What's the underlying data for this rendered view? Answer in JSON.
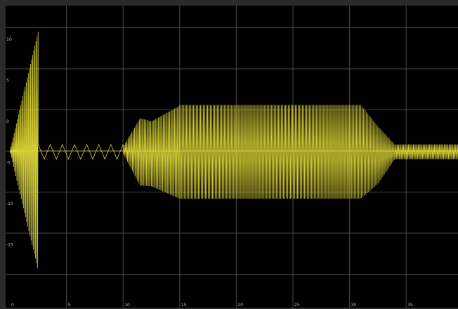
{
  "chart_data": {
    "type": "line",
    "title": "",
    "xlabel": "",
    "ylabel": "",
    "xlim": [
      0,
      40
    ],
    "ylim": [
      -17,
      17
    ],
    "grid": true,
    "xticks": [
      0,
      5,
      10,
      15,
      20,
      25,
      30,
      35
    ],
    "xtick_labels": [
      "0",
      "5",
      "10",
      "15",
      "20",
      "25",
      "30",
      "35"
    ],
    "yticks": [
      15,
      10,
      5,
      0,
      -5,
      -10,
      -15
    ],
    "ytick_labels": [
      "15",
      "10",
      "5",
      "0",
      "-5",
      "-10",
      "-15"
    ],
    "series": [
      {
        "color": "#e8e03a",
        "segments": [
          {
            "label_phase": "initial oscillation",
            "x_start": 0.0,
            "x_end": 2.5,
            "envelope_x": [
              0.0,
              2.5
            ],
            "envelope_y": [
              0.0,
              14.5
            ],
            "lower_y_at_end": -14.5,
            "cycles": 26
          },
          {
            "label_phase": "low ripple",
            "x_start": 2.5,
            "x_end": 10.0,
            "min_y": -1.0,
            "max_y": 0.8,
            "cycles": 7
          },
          {
            "label_phase": "ramp up",
            "x_start": 10.0,
            "x_end": 15.0,
            "envelope_x": [
              10.0,
              11.5,
              12.5,
              15.0
            ],
            "envelope_y": [
              0.5,
              4.0,
              3.6,
              5.5
            ],
            "lower_env_y": [
              -0.3,
              -4.2,
              -4.3,
              -5.8
            ],
            "cycles": 45
          },
          {
            "label_phase": "steady oscillation",
            "x_start": 15.0,
            "x_end": 31.0,
            "max_y": 5.6,
            "min_y": -5.8,
            "cycles": 130
          },
          {
            "label_phase": "ramp down",
            "x_start": 31.0,
            "x_end": 34.0,
            "envelope_x": [
              31.0,
              32.5,
              34.0
            ],
            "envelope_y": [
              5.6,
              3.0,
              0.8
            ],
            "lower_env_y": [
              -5.8,
              -4.0,
              -1.0
            ],
            "cycles": 24
          },
          {
            "label_phase": "small residual",
            "x_start": 34.0,
            "x_end": 40.0,
            "max_y": 0.8,
            "min_y": -1.0,
            "cycles": 55
          }
        ]
      }
    ]
  }
}
